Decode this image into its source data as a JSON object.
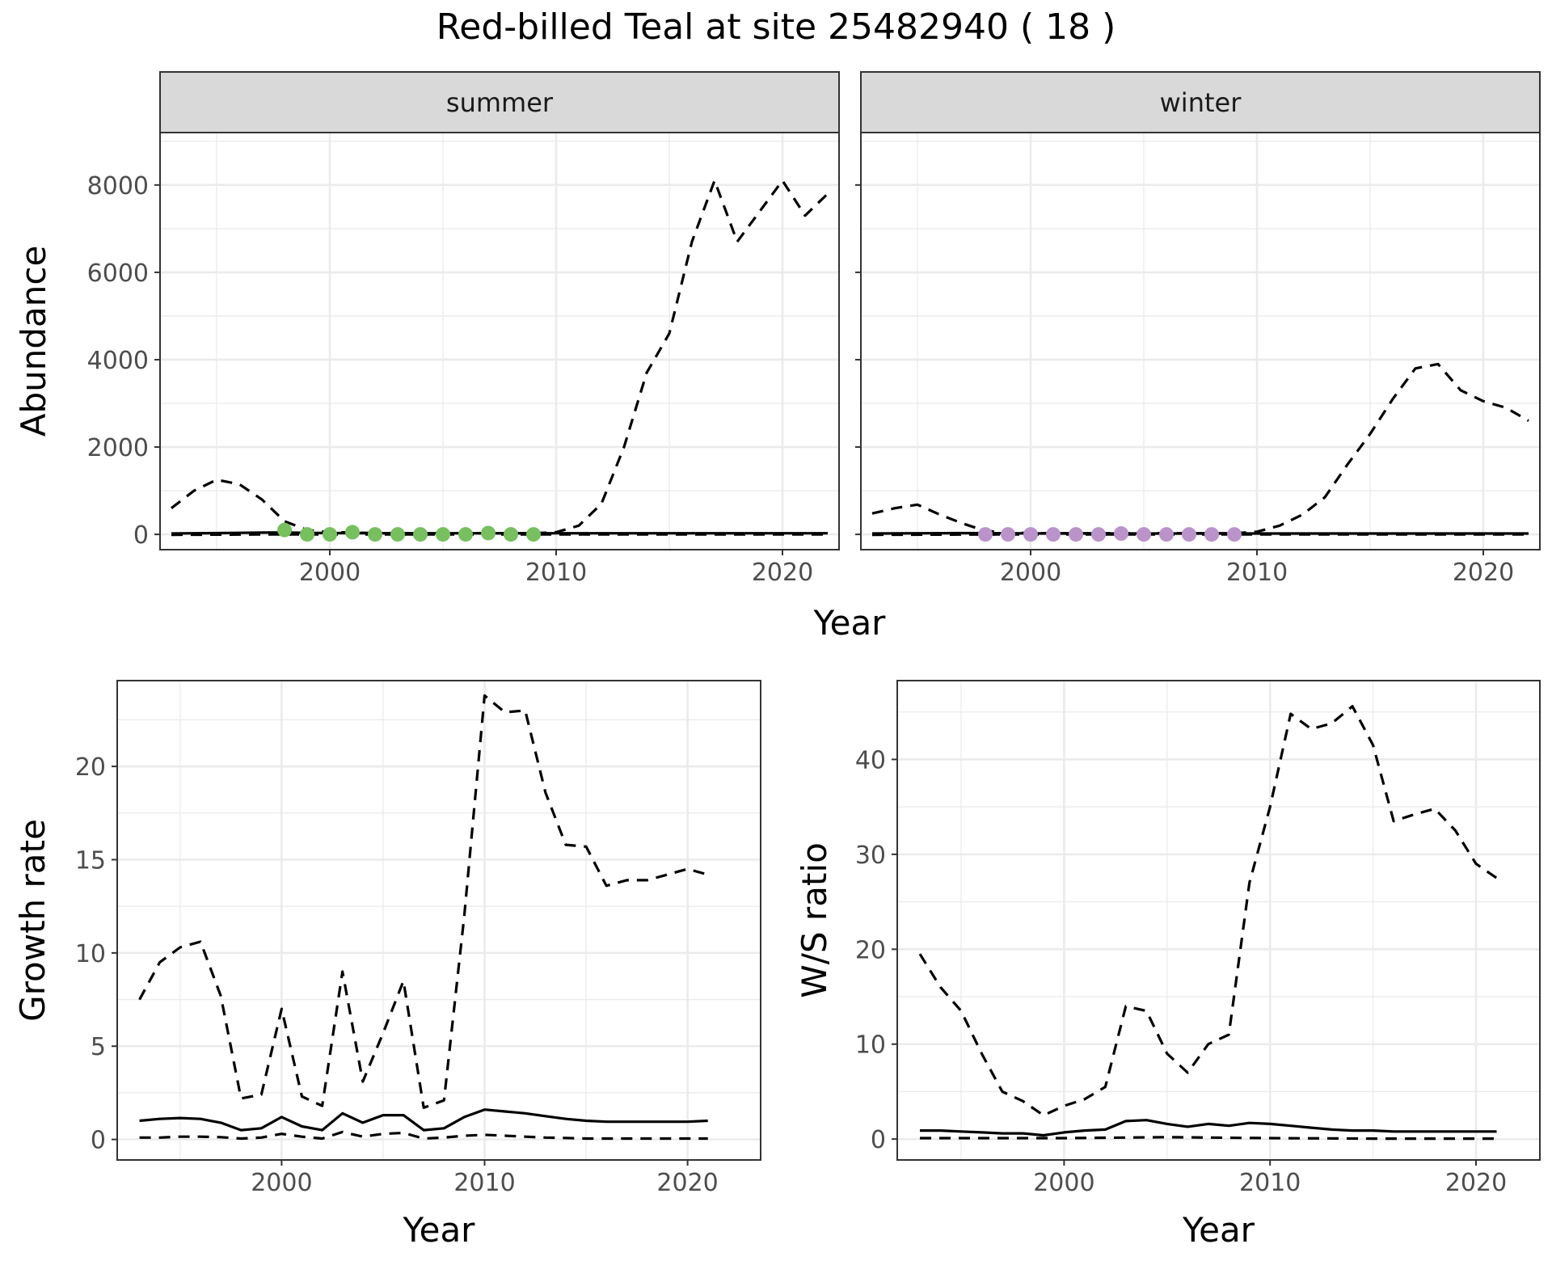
{
  "figure": {
    "title": "Red-billed Teal at site 25482940 ( 18 )"
  },
  "chart_data": [
    {
      "id": "abundance",
      "type": "line",
      "ylabel": "Abundance",
      "xlabel": "Year",
      "xlim": [
        1992.5,
        2022.5
      ],
      "ylim": [
        -350,
        9200
      ],
      "x_breaks": [
        2000,
        2010,
        2020
      ],
      "y_breaks": [
        0,
        2000,
        4000,
        6000,
        8000
      ],
      "grid": true,
      "facets": [
        {
          "strip": "summer",
          "points_color": "#77bf5f",
          "mean": {
            "x": [
              1993,
              1994,
              1995,
              1996,
              1997,
              1998,
              1999,
              2000,
              2001,
              2002,
              2003,
              2004,
              2005,
              2006,
              2007,
              2008,
              2009,
              2010,
              2011,
              2012,
              2013,
              2014,
              2015,
              2016,
              2017,
              2018,
              2019,
              2020,
              2021,
              2022
            ],
            "y": [
              20,
              25,
              30,
              35,
              40,
              45,
              35,
              30,
              30,
              28,
              25,
              25,
              25,
              25,
              25,
              25,
              25,
              25,
              25,
              25,
              25,
              25,
              25,
              25,
              25,
              25,
              25,
              25,
              25,
              25
            ]
          },
          "upper": {
            "x": [
              1993,
              1994,
              1995,
              1996,
              1997,
              1998,
              1999,
              2000,
              2001,
              2002,
              2003,
              2004,
              2005,
              2006,
              2007,
              2008,
              2009,
              2010,
              2011,
              2012,
              2013,
              2014,
              2015,
              2016,
              2017,
              2018,
              2019,
              2020,
              2021,
              2022
            ],
            "y": [
              600,
              1000,
              1250,
              1150,
              800,
              300,
              100,
              50,
              40,
              30,
              25,
              25,
              25,
              25,
              25,
              25,
              25,
              50,
              200,
              700,
              2000,
              3700,
              4600,
              6700,
              8100,
              6700,
              7400,
              8100,
              7300,
              7800
            ]
          },
          "lower": {
            "x": [
              1993,
              1998,
              2002,
              2008,
              2012,
              2016,
              2020,
              2022
            ],
            "y": [
              -10,
              0,
              0,
              0,
              0,
              0,
              0,
              0
            ]
          },
          "points": {
            "x": [
              1998,
              1999,
              2000,
              2001,
              2002,
              2003,
              2004,
              2005,
              2006,
              2007,
              2008,
              2009
            ],
            "y": [
              100,
              0,
              0,
              50,
              0,
              0,
              0,
              0,
              0,
              30,
              0,
              0
            ]
          }
        },
        {
          "strip": "winter",
          "points_color": "#b993c9",
          "mean": {
            "x": [
              1993,
              1994,
              1995,
              1996,
              1997,
              1998,
              1999,
              2000,
              2001,
              2002,
              2003,
              2004,
              2005,
              2006,
              2007,
              2008,
              2009,
              2010,
              2011,
              2012,
              2013,
              2014,
              2015,
              2016,
              2017,
              2018,
              2019,
              2020,
              2021,
              2022
            ],
            "y": [
              20,
              22,
              25,
              28,
              30,
              28,
              25,
              22,
              20,
              20,
              20,
              20,
              20,
              20,
              20,
              20,
              20,
              20,
              20,
              20,
              20,
              20,
              20,
              20,
              20,
              20,
              20,
              20,
              20,
              20
            ]
          },
          "upper": {
            "x": [
              1993,
              1994,
              1995,
              1996,
              1997,
              1998,
              1999,
              2000,
              2001,
              2002,
              2003,
              2004,
              2005,
              2006,
              2007,
              2008,
              2009,
              2010,
              2011,
              2012,
              2013,
              2014,
              2015,
              2016,
              2017,
              2018,
              2019,
              2020,
              2021,
              2022
            ],
            "y": [
              480,
              600,
              680,
              450,
              250,
              80,
              40,
              30,
              25,
              25,
              25,
              25,
              25,
              25,
              25,
              25,
              25,
              60,
              200,
              450,
              850,
              1600,
              2300,
              3100,
              3800,
              3900,
              3300,
              3050,
              2900,
              2600
            ]
          },
          "lower": {
            "x": [
              1993,
              2000,
              2010,
              2022
            ],
            "y": [
              -10,
              0,
              0,
              0
            ]
          },
          "points": {
            "x": [
              1998,
              1999,
              2000,
              2001,
              2002,
              2003,
              2004,
              2005,
              2006,
              2007,
              2008,
              2009
            ],
            "y": [
              0,
              0,
              0,
              0,
              0,
              0,
              20,
              0,
              0,
              0,
              0,
              0
            ]
          }
        }
      ]
    },
    {
      "id": "growth",
      "type": "line",
      "ylabel": "Growth rate",
      "xlabel": "Year",
      "xlim": [
        1991.9,
        2023.6
      ],
      "ylim": [
        -1.1,
        24.6
      ],
      "x_breaks": [
        2000,
        2010,
        2020
      ],
      "y_breaks": [
        0,
        5,
        10,
        15,
        20
      ],
      "grid": true,
      "mean": {
        "x": [
          1993,
          1994,
          1995,
          1996,
          1997,
          1998,
          1999,
          2000,
          2001,
          2002,
          2003,
          2004,
          2005,
          2006,
          2007,
          2008,
          2009,
          2010,
          2011,
          2012,
          2013,
          2014,
          2015,
          2016,
          2017,
          2018,
          2019,
          2020,
          2021
        ],
        "y": [
          1.0,
          1.1,
          1.15,
          1.1,
          0.9,
          0.5,
          0.6,
          1.2,
          0.7,
          0.5,
          1.4,
          0.9,
          1.3,
          1.3,
          0.5,
          0.6,
          1.2,
          1.6,
          1.5,
          1.4,
          1.25,
          1.1,
          1.0,
          0.95,
          0.95,
          0.95,
          0.95,
          0.95,
          1.0
        ]
      },
      "upper": {
        "x": [
          1993,
          1994,
          1995,
          1996,
          1997,
          1998,
          1999,
          2000,
          2001,
          2002,
          2003,
          2004,
          2005,
          2006,
          2007,
          2008,
          2009,
          2010,
          2011,
          2012,
          2013,
          2014,
          2015,
          2016,
          2017,
          2018,
          2019,
          2020,
          2021
        ],
        "y": [
          7.5,
          9.5,
          10.3,
          10.6,
          7.7,
          2.2,
          2.4,
          7.0,
          2.3,
          1.8,
          9.0,
          3.1,
          5.7,
          8.5,
          1.7,
          2.1,
          12.0,
          23.8,
          22.9,
          23.0,
          18.6,
          15.8,
          15.7,
          13.6,
          13.9,
          13.9,
          14.2,
          14.5,
          14.2
        ]
      },
      "lower": {
        "x": [
          1993,
          1994,
          1995,
          1996,
          1997,
          1998,
          1999,
          2000,
          2001,
          2002,
          2003,
          2004,
          2005,
          2006,
          2007,
          2008,
          2009,
          2010,
          2011,
          2012,
          2013,
          2014,
          2015,
          2016,
          2017,
          2018,
          2019,
          2020,
          2021
        ],
        "y": [
          0.1,
          0.1,
          0.15,
          0.15,
          0.12,
          0.05,
          0.1,
          0.3,
          0.15,
          0.05,
          0.4,
          0.15,
          0.3,
          0.35,
          0.05,
          0.1,
          0.2,
          0.25,
          0.2,
          0.15,
          0.1,
          0.08,
          0.05,
          0.05,
          0.05,
          0.05,
          0.05,
          0.05,
          0.05
        ]
      }
    },
    {
      "id": "ratio",
      "type": "line",
      "ylabel": "W/S ratio",
      "xlabel": "Year",
      "xlim": [
        1991.9,
        2023.1
      ],
      "ylim": [
        -2.2,
        48.3
      ],
      "x_breaks": [
        2000,
        2010,
        2020
      ],
      "y_breaks": [
        0,
        10,
        20,
        30,
        40
      ],
      "grid": true,
      "mean": {
        "x": [
          1993,
          1994,
          1995,
          1996,
          1997,
          1998,
          1999,
          2000,
          2001,
          2002,
          2003,
          2004,
          2005,
          2006,
          2007,
          2008,
          2009,
          2010,
          2011,
          2012,
          2013,
          2014,
          2015,
          2016,
          2017,
          2018,
          2019,
          2020,
          2021
        ],
        "y": [
          0.9,
          0.9,
          0.8,
          0.7,
          0.6,
          0.6,
          0.4,
          0.7,
          0.9,
          1.0,
          1.9,
          2.0,
          1.6,
          1.3,
          1.6,
          1.4,
          1.7,
          1.6,
          1.4,
          1.2,
          1.0,
          0.9,
          0.9,
          0.8,
          0.8,
          0.8,
          0.8,
          0.8,
          0.8
        ]
      },
      "upper": {
        "x": [
          1993,
          1994,
          1995,
          1996,
          1997,
          1998,
          1999,
          2000,
          2001,
          2002,
          2003,
          2004,
          2005,
          2006,
          2007,
          2008,
          2009,
          2010,
          2011,
          2012,
          2013,
          2014,
          2015,
          2016,
          2017,
          2018,
          2019,
          2020,
          2021
        ],
        "y": [
          19.5,
          16.0,
          13.5,
          9.0,
          5.0,
          4.0,
          2.5,
          3.5,
          4.2,
          5.5,
          14.0,
          13.5,
          9.0,
          7.0,
          10.0,
          11.0,
          27.0,
          35.0,
          44.8,
          43.2,
          43.8,
          45.6,
          41.5,
          33.5,
          34.2,
          34.8,
          32.5,
          29.0,
          27.5
        ]
      },
      "lower": {
        "x": [
          1993,
          1995,
          2000,
          2005,
          2010,
          2015,
          2021
        ],
        "y": [
          0.1,
          0.1,
          0.1,
          0.2,
          0.1,
          0.05,
          0.05
        ]
      }
    }
  ]
}
